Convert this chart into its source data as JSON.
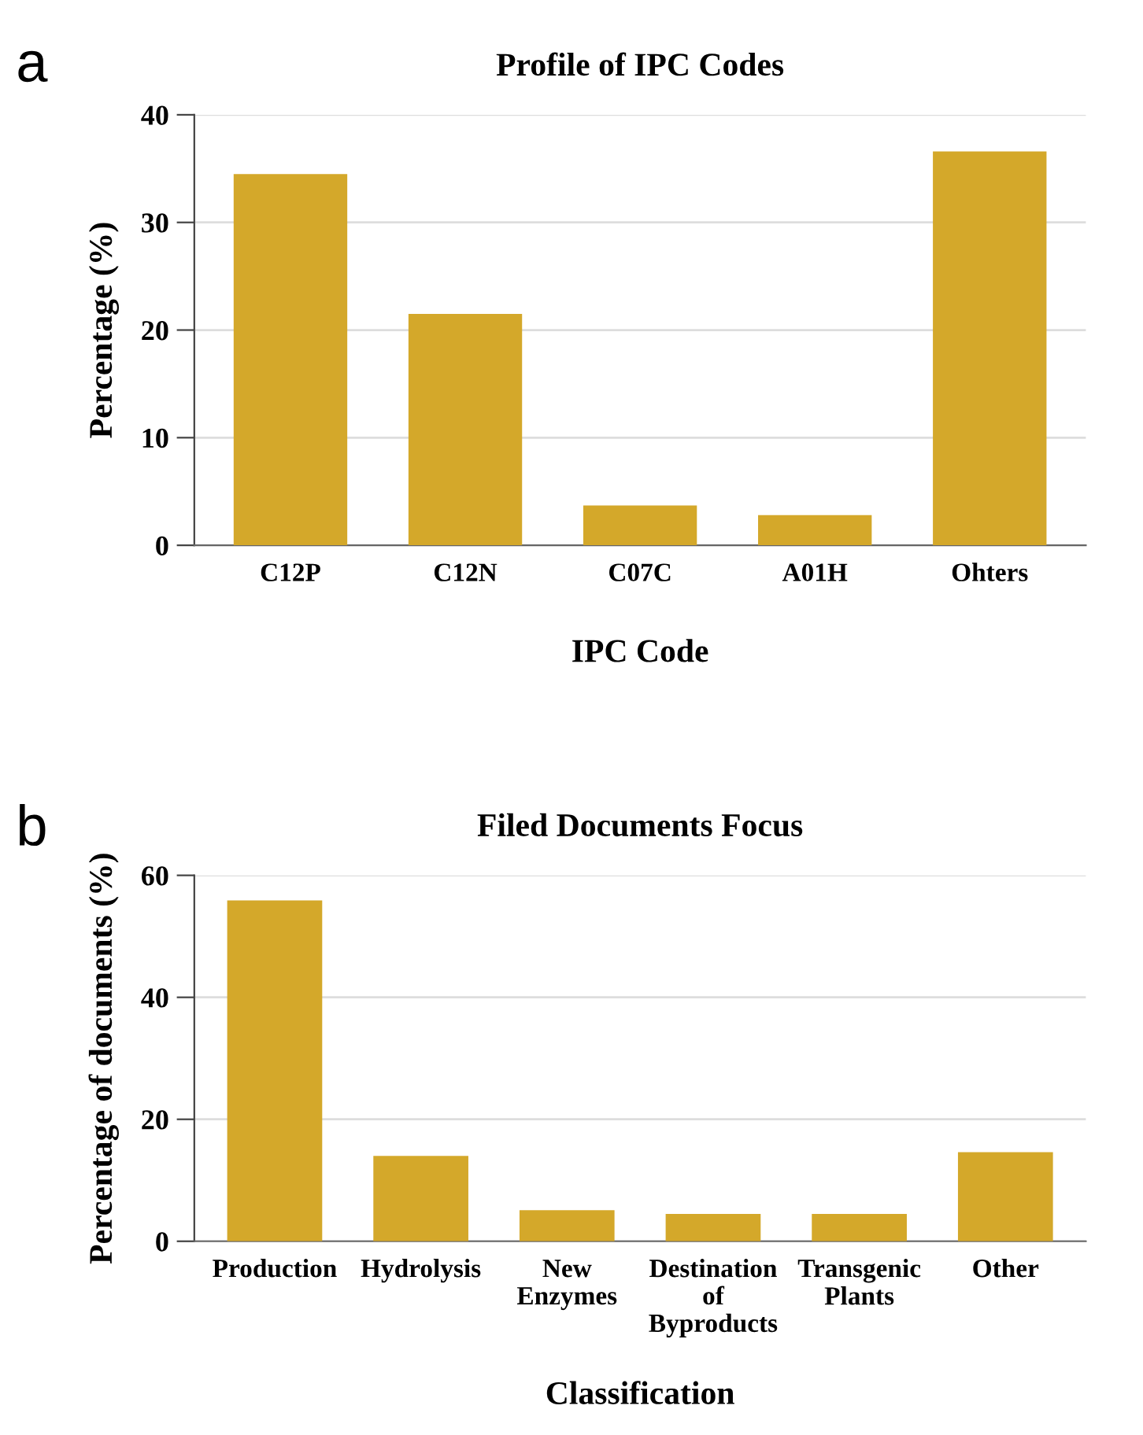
{
  "chart_data": [
    {
      "type": "bar",
      "title": "Profile of IPC Codes",
      "xlabel": "IPC Code",
      "ylabel": "Percentage (%)",
      "annotations": [
        "a"
      ],
      "categories": [
        "C12P",
        "C12N",
        "C07C",
        "A01H",
        "Ohters"
      ],
      "values": [
        34.5,
        21.5,
        3.7,
        2.8,
        36.6
      ],
      "color": "#d4a82a",
      "ylim": [
        0,
        40
      ],
      "yticks": [
        0,
        10,
        20,
        30,
        40
      ],
      "grid": "y"
    },
    {
      "type": "bar",
      "title": "Filed Documents Focus",
      "xlabel": "Classification",
      "ylabel": "Percentage of documents (%)",
      "annotations": [
        "b"
      ],
      "categories": [
        "Production",
        "Hydrolysis",
        "New\nEnzymes",
        "Destination\nof\nByproducts",
        "Transgenic\nPlants",
        "Other"
      ],
      "values": [
        55.9,
        14.0,
        5.1,
        4.5,
        4.5,
        14.6
      ],
      "color": "#d4a82a",
      "ylim": [
        0,
        60
      ],
      "yticks": [
        0,
        20,
        40,
        60
      ],
      "grid": "y"
    }
  ]
}
